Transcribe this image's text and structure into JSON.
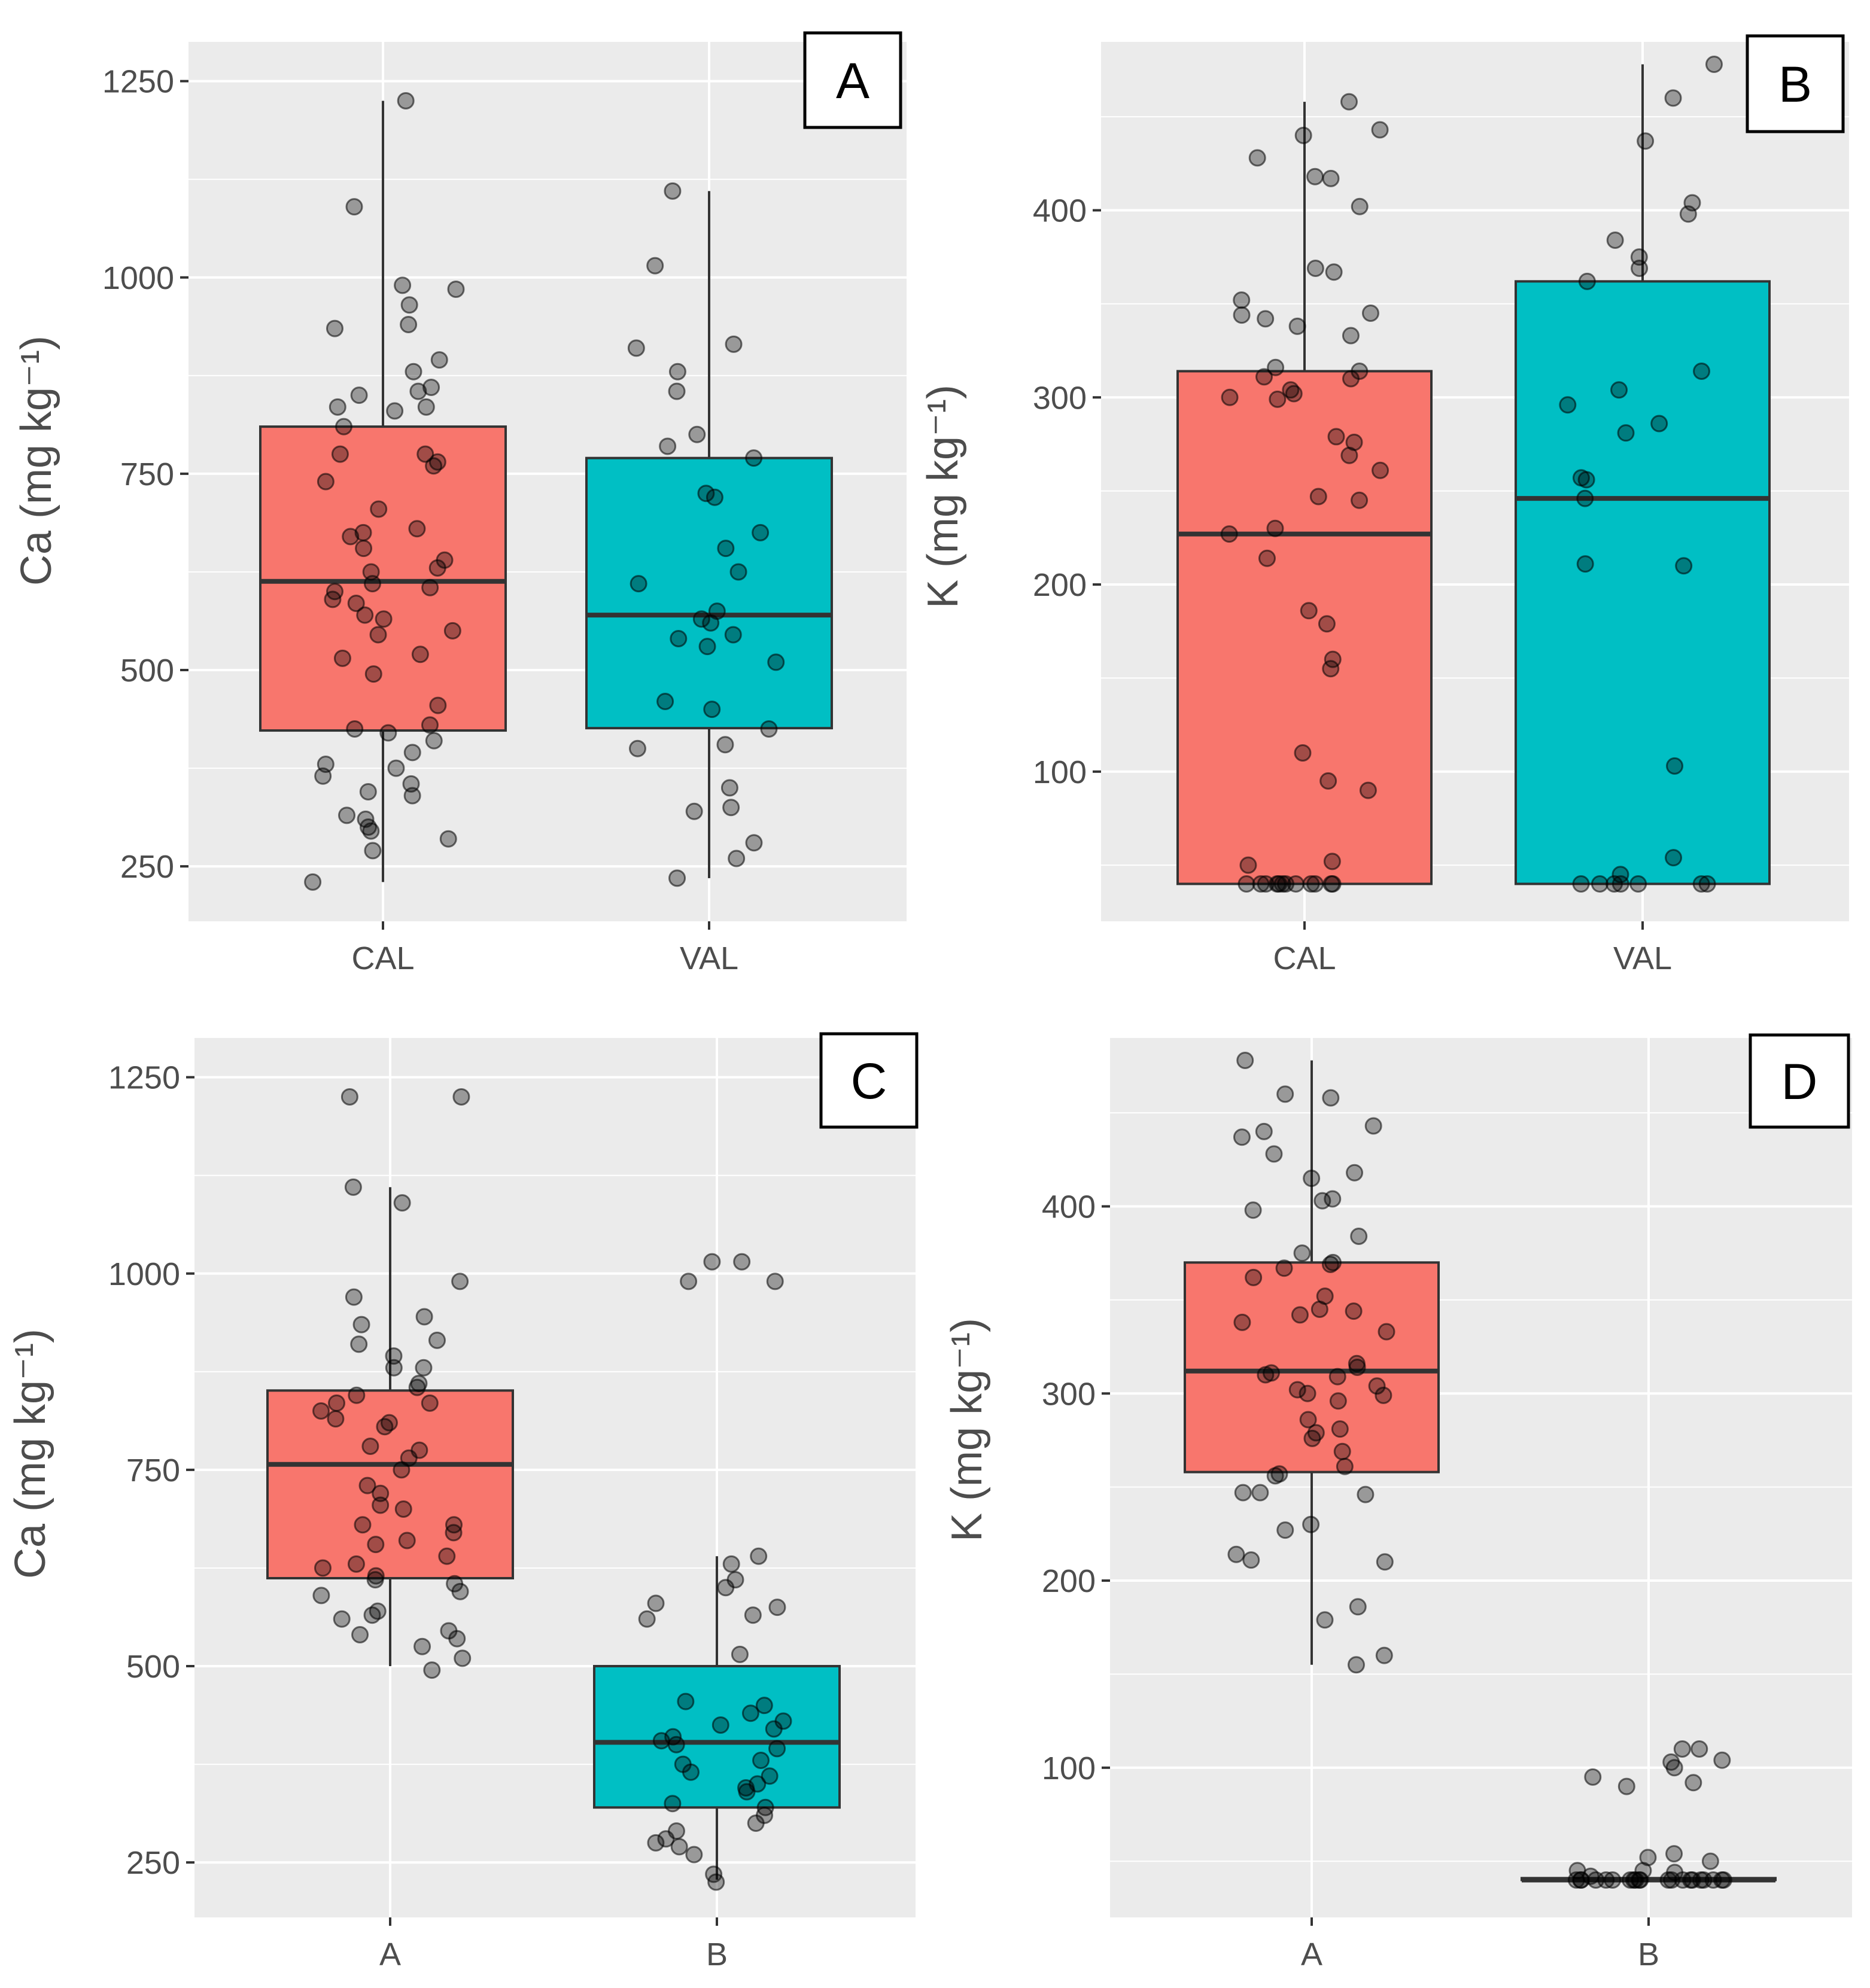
{
  "chart_data": [
    {
      "panel_label": "A",
      "type": "boxplot",
      "ylabel": "Ca (mg kg⁻¹)",
      "ylim": [
        180,
        1300
      ],
      "yticks": [
        250,
        500,
        750,
        1000,
        1250
      ],
      "ytick_labels": [
        "250",
        "500",
        "750",
        "1000",
        "1250"
      ],
      "minor_grid": [
        375,
        625,
        875,
        1125
      ],
      "categories": [
        "CAL",
        "VAL"
      ],
      "colors": [
        "#F8766D",
        "#00BFC4"
      ],
      "boxes": [
        {
          "category": "CAL",
          "min": 230,
          "q1": 423,
          "median": 613,
          "q3": 810,
          "max": 1225
        },
        {
          "category": "VAL",
          "min": 235,
          "q1": 426,
          "median": 570,
          "q3": 770,
          "max": 1110
        }
      ],
      "points": [
        [
          1225,
          1090,
          990,
          985,
          965,
          940,
          935,
          895,
          880,
          860,
          855,
          850,
          835,
          835,
          830,
          810,
          775,
          775,
          765,
          760,
          740,
          705,
          680,
          675,
          670,
          655,
          640,
          630,
          625,
          610,
          605,
          600,
          590,
          585,
          570,
          565,
          550,
          545,
          520,
          515,
          495,
          455,
          430,
          425,
          420,
          410,
          395,
          380,
          375,
          365,
          355,
          345,
          340,
          315,
          310,
          300,
          295,
          285,
          270,
          230
        ],
        [
          1110,
          1015,
          915,
          910,
          880,
          855,
          800,
          785,
          770,
          725,
          720,
          675,
          655,
          625,
          610,
          575,
          565,
          560,
          545,
          540,
          530,
          510,
          460,
          450,
          425,
          405,
          400,
          350,
          325,
          320,
          280,
          260,
          235
        ]
      ]
    },
    {
      "panel_label": "B",
      "type": "boxplot",
      "ylabel": "K (mg kg⁻¹)",
      "ylim": [
        20,
        490
      ],
      "yticks": [
        100,
        200,
        300,
        400
      ],
      "ytick_labels": [
        "100",
        "200",
        "300",
        "400"
      ],
      "minor_grid": [
        50,
        150,
        250,
        350,
        450
      ],
      "categories": [
        "CAL",
        "VAL"
      ],
      "colors": [
        "#F8766D",
        "#00BFC4"
      ],
      "boxes": [
        {
          "category": "CAL",
          "min": 40,
          "q1": 40,
          "median": 227,
          "q3": 314,
          "max": 458
        },
        {
          "category": "VAL",
          "min": 40,
          "q1": 40,
          "median": 246,
          "q3": 362,
          "max": 478
        }
      ],
      "points": [
        [
          458,
          443,
          440,
          428,
          418,
          417,
          402,
          369,
          367,
          352,
          345,
          344,
          342,
          338,
          333,
          316,
          314,
          311,
          310,
          304,
          302,
          300,
          299,
          279,
          276,
          269,
          261,
          247,
          245,
          230,
          227,
          214,
          186,
          179,
          160,
          155,
          110,
          95,
          90,
          52,
          50,
          40,
          40,
          40,
          40,
          40,
          40,
          40,
          40,
          40,
          40,
          40,
          40
        ],
        [
          478,
          460,
          437,
          404,
          398,
          384,
          375,
          369,
          362,
          314,
          304,
          296,
          286,
          281,
          257,
          256,
          246,
          211,
          210,
          103,
          54,
          45,
          40,
          40,
          40,
          40,
          40,
          40,
          40
        ]
      ]
    },
    {
      "panel_label": "C",
      "type": "boxplot",
      "ylabel": "Ca (mg kg⁻¹)",
      "ylim": [
        180,
        1300
      ],
      "yticks": [
        250,
        500,
        750,
        1000,
        1250
      ],
      "ytick_labels": [
        "250",
        "500",
        "750",
        "1000",
        "1250"
      ],
      "minor_grid": [
        375,
        625,
        875,
        1125
      ],
      "categories": [
        "A",
        "B"
      ],
      "colors": [
        "#F8766D",
        "#00BFC4"
      ],
      "boxes": [
        {
          "category": "A",
          "min": 500,
          "q1": 612,
          "median": 757,
          "q3": 851,
          "max": 1110
        },
        {
          "category": "B",
          "min": 228,
          "q1": 320,
          "median": 403,
          "q3": 500,
          "max": 640
        }
      ],
      "points": [
        [
          1225,
          1225,
          1110,
          1090,
          990,
          970,
          945,
          935,
          915,
          910,
          895,
          880,
          880,
          860,
          855,
          845,
          835,
          835,
          825,
          815,
          810,
          805,
          780,
          775,
          765,
          750,
          730,
          720,
          705,
          700,
          680,
          680,
          670,
          660,
          655,
          640,
          630,
          625,
          615,
          610,
          605,
          595,
          590,
          570,
          565,
          560,
          545,
          540,
          535,
          525,
          510,
          495
        ],
        [
          1015,
          1015,
          990,
          990,
          640,
          630,
          610,
          600,
          580,
          575,
          565,
          560,
          515,
          455,
          450,
          440,
          430,
          425,
          420,
          410,
          405,
          400,
          395,
          380,
          375,
          365,
          360,
          350,
          345,
          340,
          325,
          320,
          310,
          300,
          290,
          280,
          275,
          270,
          260,
          235,
          225
        ]
      ]
    },
    {
      "panel_label": "D",
      "type": "boxplot",
      "ylabel": "K (mg kg⁻¹)",
      "ylim": [
        20,
        490
      ],
      "yticks": [
        100,
        200,
        300,
        400
      ],
      "ytick_labels": [
        "100",
        "200",
        "300",
        "400"
      ],
      "minor_grid": [
        50,
        150,
        250,
        350,
        450
      ],
      "categories": [
        "A",
        "B"
      ],
      "colors": [
        "#F8766D",
        "#00BFC4"
      ],
      "boxes": [
        {
          "category": "A",
          "min": 155,
          "q1": 258,
          "median": 312,
          "q3": 370,
          "max": 478
        },
        {
          "category": "B",
          "min": 40,
          "q1": 40,
          "median": 40,
          "q3": 41,
          "max": 41
        }
      ],
      "points": [
        [
          478,
          460,
          458,
          443,
          440,
          437,
          428,
          418,
          415,
          404,
          403,
          398,
          384,
          375,
          370,
          369,
          367,
          362,
          352,
          345,
          344,
          342,
          338,
          333,
          316,
          314,
          311,
          310,
          309,
          304,
          302,
          300,
          299,
          296,
          286,
          281,
          279,
          276,
          269,
          261,
          257,
          256,
          247,
          247,
          246,
          230,
          227,
          214,
          211,
          210,
          186,
          179,
          160,
          155
        ],
        [
          110,
          110,
          104,
          103,
          100,
          95,
          92,
          90,
          54,
          52,
          50,
          45,
          45,
          44,
          42,
          40,
          40,
          40,
          40,
          40,
          40,
          40,
          40,
          40,
          40,
          40,
          40,
          40,
          40,
          40,
          40,
          40,
          40,
          40,
          40,
          40
        ]
      ]
    }
  ]
}
